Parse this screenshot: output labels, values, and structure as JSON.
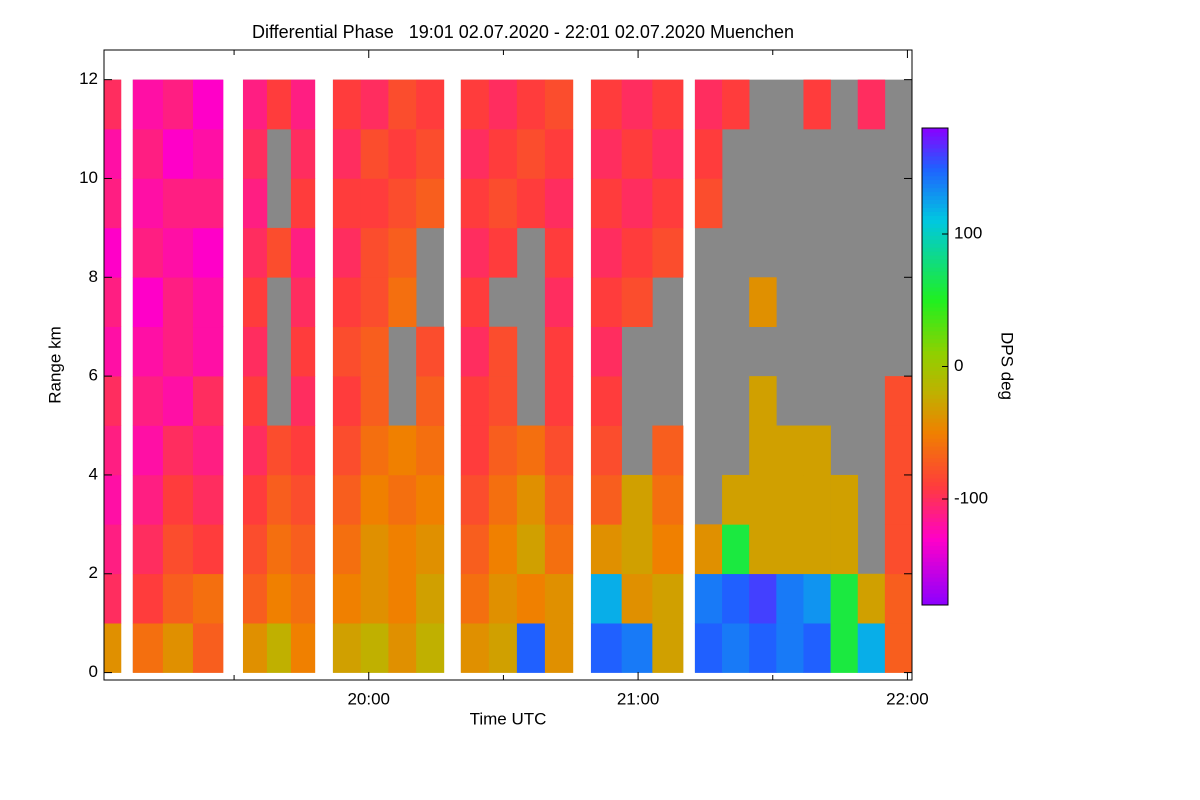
{
  "chart_data": {
    "type": "heatmap",
    "title": "Differential Phase   19:01 02.07.2020 - 22:01 02.07.2020 Muenchen",
    "xlabel": "Time UTC",
    "ylabel": "Range km",
    "colorbar_label": "DPS deg",
    "xlim": [
      19.017,
      22.017
    ],
    "xticks": [
      {
        "value": 20,
        "label": "20:00"
      },
      {
        "value": 21,
        "label": "21:00"
      },
      {
        "value": 22,
        "label": "22:00"
      }
    ],
    "xminor_ticks": [
      19.5,
      20.5,
      21.5
    ],
    "ylim": [
      -0.15,
      12.6
    ],
    "yticks": [
      0,
      2,
      4,
      6,
      8,
      10,
      12
    ],
    "clim": [
      -180,
      180
    ],
    "cticks": [
      -100,
      0,
      100
    ],
    "colorscale": [
      [
        -180,
        "#8a00ff"
      ],
      [
        -130,
        "#ff00c8"
      ],
      [
        -90,
        "#ff3c3c"
      ],
      [
        -50,
        "#f08000"
      ],
      [
        -20,
        "#c0b000"
      ],
      [
        10,
        "#90d000"
      ],
      [
        50,
        "#20f020"
      ],
      [
        110,
        "#00c8e0"
      ],
      [
        150,
        "#2060ff"
      ],
      [
        180,
        "#8a00ff"
      ]
    ],
    "null_color": "#888888",
    "y_edges": [
      0,
      1,
      2,
      3,
      4,
      5,
      6,
      7,
      8,
      9,
      10,
      11,
      12
    ],
    "segments": [
      {
        "x": [
          19.017,
          19.08
        ],
        "values": [
          [
            -40
          ],
          [
            -100
          ],
          [
            -110
          ],
          [
            -120
          ],
          [
            -110
          ],
          [
            -100
          ],
          [
            -120
          ],
          [
            -110
          ],
          [
            -130
          ],
          [
            -110
          ],
          [
            -120
          ],
          [
            -100
          ]
        ]
      },
      {
        "x": [
          19.124,
          19.459
        ],
        "values": [
          [
            -60,
            -40,
            -70
          ],
          [
            -90,
            -70,
            -60
          ],
          [
            -100,
            -80,
            -90
          ],
          [
            -110,
            -90,
            -100
          ],
          [
            -120,
            -100,
            -110
          ],
          [
            -110,
            -120,
            -100
          ],
          [
            -120,
            -110,
            -120
          ],
          [
            -130,
            -110,
            -120
          ],
          [
            -110,
            -120,
            -130
          ],
          [
            -120,
            -110,
            -110
          ],
          [
            -110,
            -130,
            -120
          ],
          [
            -120,
            -110,
            -130
          ]
        ]
      },
      {
        "x": [
          19.533,
          19.8
        ],
        "values": [
          [
            -40,
            -20,
            -50
          ],
          [
            -70,
            -50,
            -60
          ],
          [
            -80,
            -60,
            -70
          ],
          [
            -90,
            -70,
            -80
          ],
          [
            -100,
            -80,
            -90
          ],
          [
            -90,
            null,
            -100
          ],
          [
            -100,
            null,
            -90
          ],
          [
            -90,
            null,
            -100
          ],
          [
            -100,
            -80,
            -110
          ],
          [
            -110,
            null,
            -90
          ],
          [
            -100,
            null,
            -100
          ],
          [
            -110,
            -90,
            -110
          ]
        ]
      },
      {
        "x": [
          19.867,
          20.279
        ],
        "values": [
          [
            -30,
            -20,
            -40,
            -20
          ],
          [
            -50,
            -40,
            -50,
            -30
          ],
          [
            -60,
            -40,
            -50,
            -40
          ],
          [
            -70,
            -50,
            -60,
            -50
          ],
          [
            -80,
            -60,
            -50,
            -60
          ],
          [
            -90,
            -70,
            null,
            -70
          ],
          [
            -80,
            -70,
            null,
            -80
          ],
          [
            -90,
            -80,
            -60,
            null
          ],
          [
            -100,
            -80,
            -70,
            null
          ],
          [
            -90,
            -90,
            -80,
            -70
          ],
          [
            -100,
            -80,
            -90,
            -80
          ],
          [
            -90,
            -100,
            -80,
            -90
          ]
        ]
      },
      {
        "x": [
          20.342,
          20.758
        ],
        "values": [
          [
            -40,
            -30,
            150,
            -40
          ],
          [
            -60,
            -40,
            -50,
            -40
          ],
          [
            -70,
            -50,
            -30,
            -60
          ],
          [
            -80,
            -60,
            -40,
            -70
          ],
          [
            -90,
            -70,
            -60,
            -80
          ],
          [
            -90,
            -80,
            null,
            -90
          ],
          [
            -100,
            -80,
            null,
            -90
          ],
          [
            -90,
            null,
            null,
            -100
          ],
          [
            -100,
            -90,
            null,
            -90
          ],
          [
            -90,
            -80,
            -90,
            -100
          ],
          [
            -100,
            -90,
            -80,
            -90
          ],
          [
            -90,
            -100,
            -90,
            -80
          ]
        ]
      },
      {
        "x": [
          20.825,
          21.167
        ],
        "values": [
          [
            150,
            140,
            -30
          ],
          [
            120,
            -40,
            -30
          ],
          [
            -40,
            -30,
            -50
          ],
          [
            -70,
            -30,
            -60
          ],
          [
            -80,
            null,
            -70
          ],
          [
            -90,
            null,
            null
          ],
          [
            -100,
            null,
            null
          ],
          [
            -90,
            -80,
            null
          ],
          [
            -100,
            -90,
            -80
          ],
          [
            -90,
            -100,
            -90
          ],
          [
            -100,
            -90,
            -100
          ],
          [
            -90,
            -100,
            -90
          ]
        ]
      },
      {
        "x": [
          21.211,
          22.017
        ],
        "values": [
          [
            150,
            140,
            150,
            140,
            150,
            60,
            120,
            -70
          ],
          [
            140,
            150,
            160,
            140,
            130,
            60,
            -30,
            -70
          ],
          [
            -40,
            60,
            -30,
            -30,
            -30,
            -30,
            null,
            -80
          ],
          [
            null,
            -30,
            -30,
            -30,
            -30,
            -30,
            null,
            -80
          ],
          [
            null,
            null,
            -30,
            -30,
            -30,
            null,
            null,
            -80
          ],
          [
            null,
            null,
            -30,
            null,
            null,
            null,
            null,
            -80
          ],
          [
            null,
            null,
            null,
            null,
            null,
            null,
            null,
            null
          ],
          [
            null,
            null,
            -40,
            null,
            null,
            null,
            null,
            null
          ],
          [
            null,
            null,
            null,
            null,
            null,
            null,
            null,
            null
          ],
          [
            -80,
            null,
            null,
            null,
            null,
            null,
            null,
            null
          ],
          [
            -90,
            null,
            null,
            null,
            null,
            null,
            null,
            null
          ],
          [
            -100,
            -90,
            null,
            null,
            -90,
            null,
            -100,
            null
          ]
        ]
      }
    ]
  }
}
